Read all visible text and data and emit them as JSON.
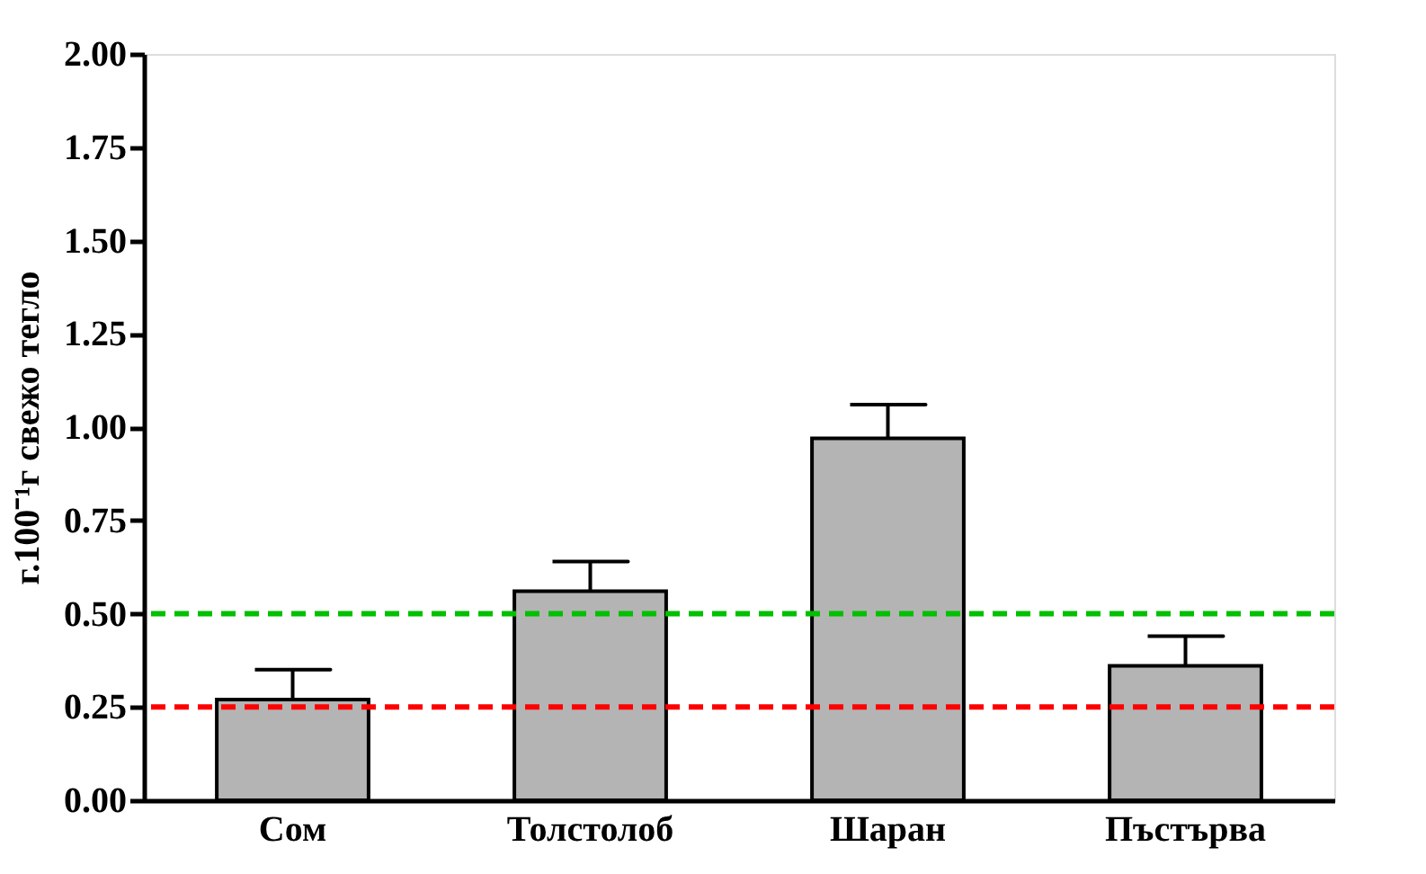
{
  "chart_data": {
    "type": "bar",
    "ylabel": "г.100⁻¹г свежо тегло",
    "categories": [
      "Сом",
      "Толстолоб",
      "Шаран",
      "Пъстърва"
    ],
    "values": [
      0.27,
      0.56,
      0.97,
      0.36
    ],
    "errors": [
      [
        0.27,
        0.35
      ],
      [
        0.56,
        0.64
      ],
      [
        0.97,
        1.06
      ],
      [
        0.36,
        0.44
      ]
    ],
    "color": "#b4b4b4",
    "ylim": [
      0,
      2.0
    ],
    "yticks": [
      {
        "value": 0,
        "label": "0.00"
      },
      {
        "value": 0.25,
        "label": "0.25"
      },
      {
        "value": 0.5,
        "label": "0.50"
      },
      {
        "value": 0.75,
        "label": "0.75"
      },
      {
        "value": 1.0,
        "label": "1.00"
      },
      {
        "value": 1.25,
        "label": "1.25"
      },
      {
        "value": 1.5,
        "label": "1.50"
      },
      {
        "value": 1.75,
        "label": "1.75"
      },
      {
        "value": 2.0,
        "label": "2.00"
      }
    ],
    "ref_lines": [
      {
        "axis": "y",
        "value": 0.5,
        "label": null,
        "color": "#00c000",
        "line_style": "dashed"
      },
      {
        "axis": "y",
        "value": 0.25,
        "label": null,
        "color": "#ff0000",
        "line_style": "dashed"
      }
    ],
    "grid": false
  }
}
